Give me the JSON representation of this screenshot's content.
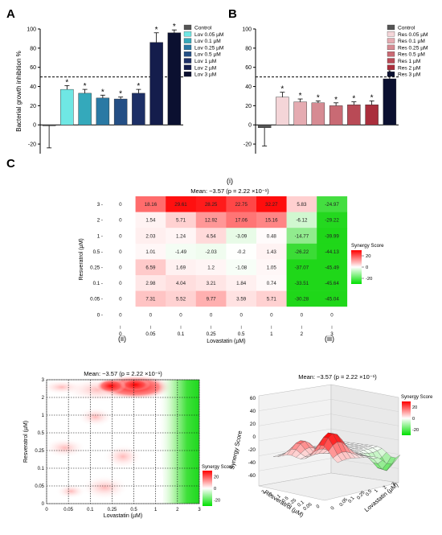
{
  "panels": {
    "A": "A",
    "B": "B",
    "C": "C",
    "i": "(i)",
    "ii": "(ii)",
    "iii": "(iii)"
  },
  "chart_data": [
    {
      "id": "A",
      "type": "bar",
      "ylabel": "Bacterial growth inhibition %",
      "ylim": [
        -30,
        100
      ],
      "yticks": [
        -20,
        0,
        20,
        40,
        60,
        80,
        100
      ],
      "reference_line": 50,
      "categories": [
        "Control",
        "Lov 0.05 µM",
        "Lov 0.1 µM",
        "Lov 0.25 µM",
        "Lov 0.5 µM",
        "Lov 1 µM",
        "Lov 2 µM",
        "Lov 3 µM"
      ],
      "values": [
        -1,
        37,
        33,
        28,
        27,
        33,
        86,
        96
      ],
      "errors": [
        23,
        4,
        4,
        3,
        2,
        4,
        10,
        3
      ],
      "significant": [
        false,
        true,
        true,
        true,
        true,
        true,
        true,
        true
      ],
      "star": "*",
      "colors": [
        "#555555",
        "#6fe7e4",
        "#34a9bb",
        "#2a79a4",
        "#244f85",
        "#1d2f66",
        "#141d4c",
        "#0b1030"
      ],
      "legend": "top-right"
    },
    {
      "id": "B",
      "type": "bar",
      "ylim": [
        -30,
        100
      ],
      "yticks": [
        -20,
        0,
        20,
        40,
        60,
        80,
        100
      ],
      "reference_line": 50,
      "categories": [
        "Control",
        "Res 0.05 µM",
        "Res 0.1 µM",
        "Res 0.25 µM",
        "Res 0.5 µM",
        "Res 1 µM",
        "Res 2 µM",
        "Res 3 µM"
      ],
      "values": [
        -3,
        29,
        24,
        23,
        20,
        21,
        21,
        48
      ],
      "errors": [
        19,
        5,
        3,
        2,
        3,
        3,
        4,
        3
      ],
      "significant": [
        false,
        true,
        true,
        true,
        true,
        true,
        true,
        true
      ],
      "star": "*",
      "colors": [
        "#555555",
        "#f4d5d8",
        "#e5abb1",
        "#d68b93",
        "#c96a74",
        "#b94a56",
        "#aa2e3c",
        "#0b1030"
      ],
      "legend": "top-right"
    },
    {
      "id": "C-i",
      "type": "heatmap",
      "title": "Mean: −3.57 (p = 2.22 ×10⁻¹)",
      "xlabel": "Lovastatin (µM)",
      "ylabel": "Resveratrol (µM)",
      "x": [
        "0",
        "0.05",
        "0.1",
        "0.25",
        "0.5",
        "1",
        "2",
        "3"
      ],
      "y": [
        "3",
        "2",
        "1",
        "0.5",
        "0.25",
        "0.1",
        "0.05",
        "0"
      ],
      "values": [
        [
          0,
          18.16,
          29.61,
          28.25,
          22.75,
          32.27,
          5.83,
          -24.97
        ],
        [
          0,
          1.54,
          5.71,
          12.92,
          17.06,
          15.16,
          -6.12,
          -29.22
        ],
        [
          0,
          2.03,
          1.24,
          4.54,
          -3.09,
          0.48,
          -14.77,
          -39.99
        ],
        [
          0,
          1.01,
          -1.49,
          -2.03,
          -0.2,
          1.43,
          -26.22,
          -44.13
        ],
        [
          0,
          6.59,
          1.69,
          1.2,
          -1.08,
          1.05,
          -37.07,
          -45.49
        ],
        [
          0,
          2.98,
          4.04,
          3.21,
          1.84,
          0.74,
          -33.51,
          -45.64
        ],
        [
          0,
          7.31,
          5.52,
          9.77,
          3.59,
          5.71,
          -30.28,
          -45.04
        ],
        [
          0,
          0,
          0,
          0,
          0,
          0,
          0,
          0
        ]
      ],
      "colorbar": {
        "label": "Synergy Score",
        "ticks": [
          20,
          0,
          -20
        ],
        "max": 30,
        "min": -30
      }
    },
    {
      "id": "C-ii",
      "type": "heatmap",
      "title": "Mean: −3.57 (p = 2.22 ×10⁻¹)",
      "xlabel": "Lovastatin (µM)",
      "ylabel": "Resveratrol (µM)",
      "x": [
        "0",
        "0.05",
        "0.1",
        "0.25",
        "0.5",
        "1",
        "2",
        "3"
      ],
      "y": [
        "3",
        "2",
        "1",
        "0.5",
        "0.25",
        "0.1",
        "0.05",
        "0"
      ],
      "colorbar": {
        "label": "Synergy Score",
        "ticks": [
          20,
          0,
          -20
        ]
      }
    },
    {
      "id": "C-iii",
      "type": "surface",
      "title": "Mean: −3.57 (p = 2.22 ×10⁻¹)",
      "zlabel": "Synergy Score",
      "xlabel": "Lovastatin (µM)",
      "ylabel": "Resveratrol (µM)",
      "zticks": [
        60,
        40,
        20,
        0,
        -20,
        -40,
        -60
      ],
      "xticks": [
        "0",
        "0.05",
        "0.1",
        "0.25",
        "0.5",
        "1",
        "2",
        "3"
      ],
      "yticks": [
        "0",
        "0.05",
        "0.1",
        "0.25",
        "0.5",
        "1",
        "2",
        "3"
      ],
      "colorbar": {
        "label": "Synergy Score",
        "ticks": [
          20,
          0,
          -20
        ]
      }
    }
  ]
}
